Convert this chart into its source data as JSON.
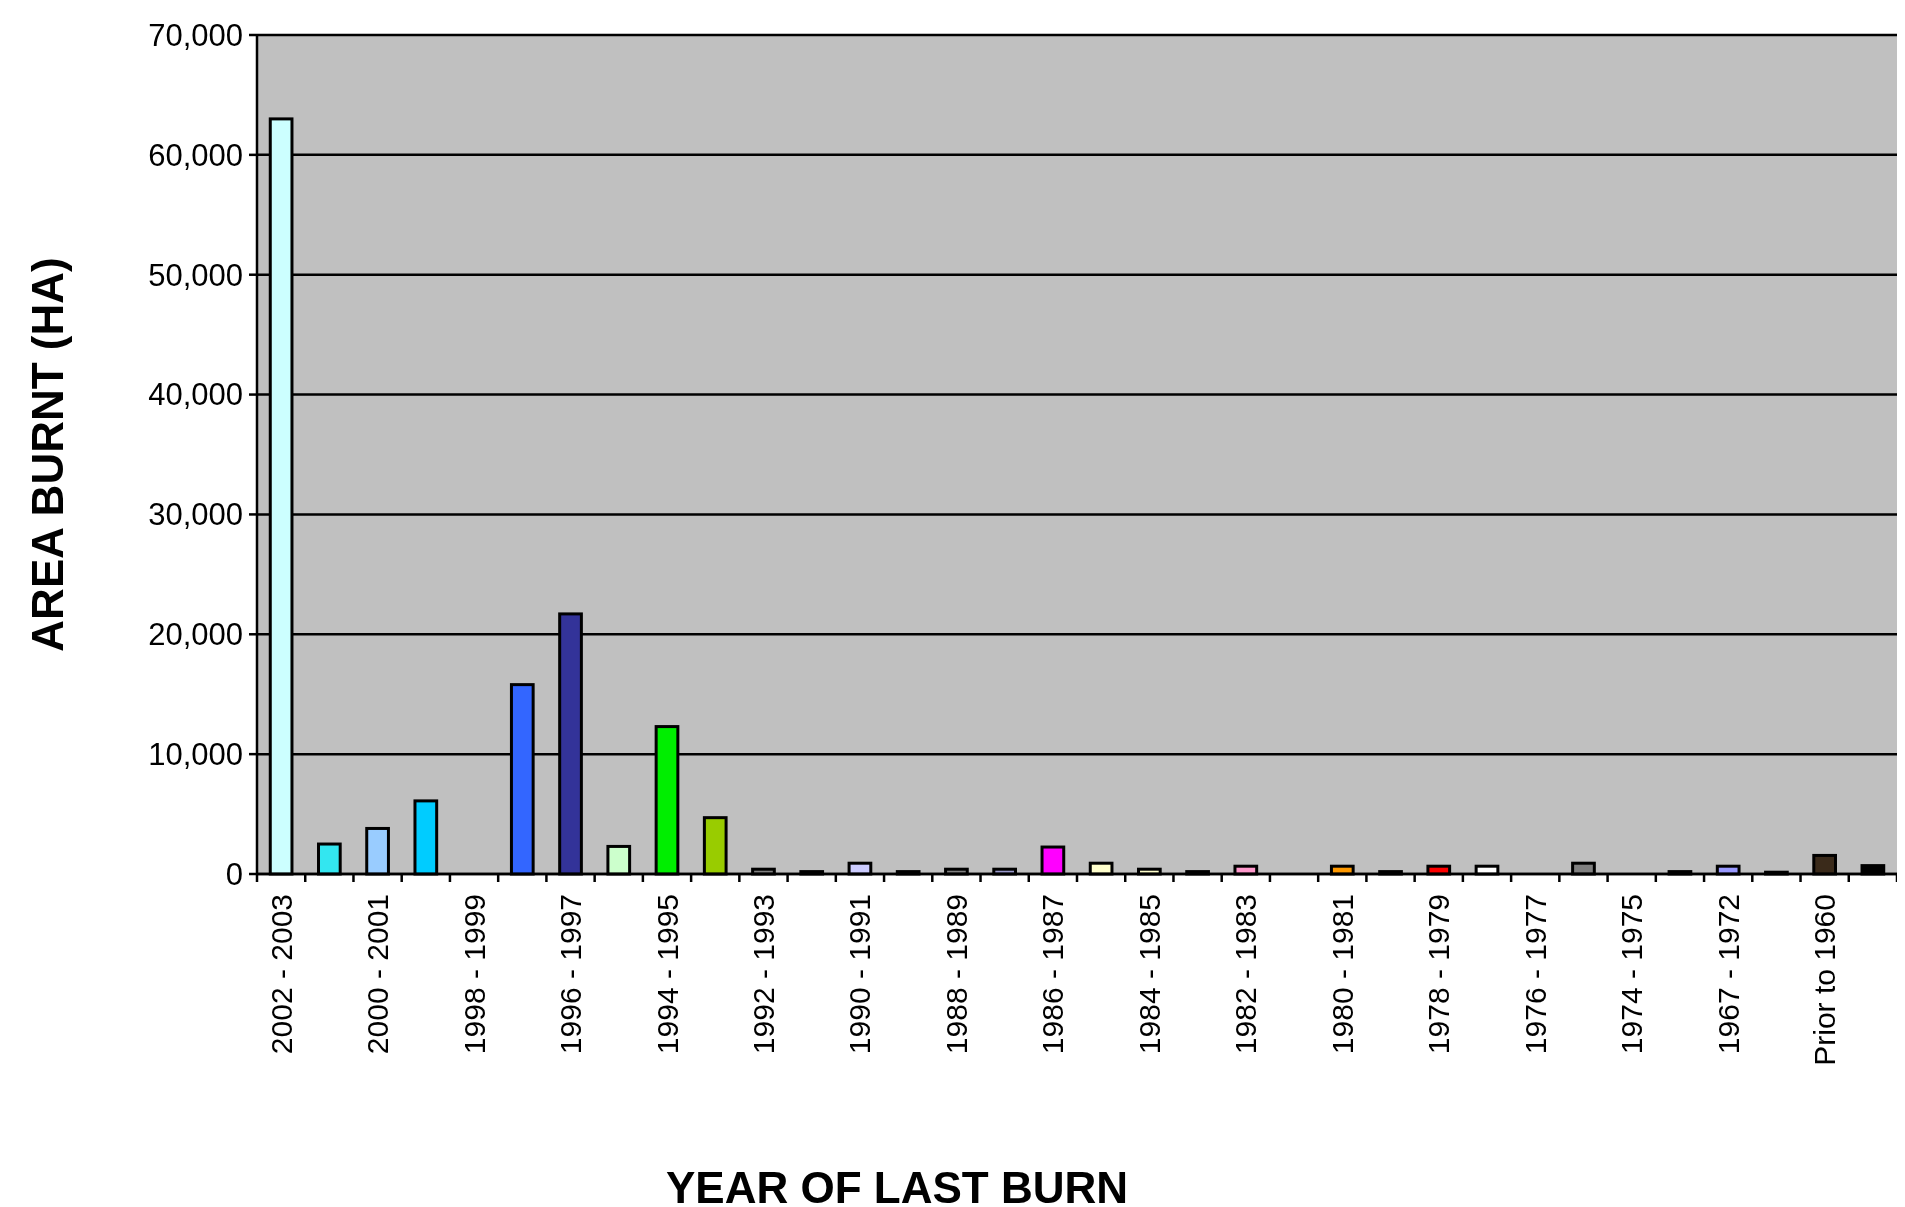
{
  "chart_data": {
    "type": "bar",
    "xlabel": "YEAR OF LAST BURN",
    "ylabel": "AREA BURNT (HA)",
    "categories": [
      "2002 - 2003",
      null,
      "2000 - 2001",
      null,
      "1998 - 1999",
      null,
      "1996 - 1997",
      null,
      "1994 - 1995",
      null,
      "1992 - 1993",
      null,
      "1990 - 1991",
      null,
      "1988 - 1989",
      null,
      "1986 - 1987",
      null,
      "1984 - 1985",
      null,
      "1982 - 1983",
      null,
      "1980 - 1981",
      null,
      "1978 - 1979",
      null,
      "1976 - 1977",
      null,
      "1974 - 1975",
      null,
      "1967 - 1972",
      null,
      "Prior to 1960",
      null
    ],
    "values": [
      63000,
      2500,
      3800,
      6100,
      0,
      15800,
      21700,
      2300,
      12300,
      4700,
      400,
      200,
      900,
      200,
      400,
      400,
      2250,
      900,
      400,
      200,
      650,
      0,
      650,
      200,
      650,
      650,
      0,
      900,
      0,
      200,
      650,
      150,
      1550,
      700
    ],
    "colors": [
      "#ccffff",
      "#33e6f0",
      "#99ccff",
      "#00ccff",
      "#c0c0c0",
      "#3366ff",
      "#333399",
      "#ccffcc",
      "#00ee00",
      "#99cc00",
      "#808080",
      "#000000",
      "#ccccff",
      "#000000",
      "#808080",
      "#9999cc",
      "#ff00ff",
      "#ffffcc",
      "#ffffcc",
      "#000000",
      "#ff99cc",
      "#c0c0c0",
      "#ff9900",
      "#000000",
      "#ff0000",
      "#ffffff",
      "#c0c0c0",
      "#808080",
      "#c0c0c0",
      "#000000",
      "#9999ff",
      "#000000",
      "#3a2a1a",
      "#000000"
    ],
    "ylim": [
      0,
      70000
    ],
    "yticks": [
      {
        "value": 0,
        "label": "0"
      },
      {
        "value": 10000,
        "label": "10,000"
      },
      {
        "value": 20000,
        "label": "20,000"
      },
      {
        "value": 30000,
        "label": "30,000"
      },
      {
        "value": 40000,
        "label": "40,000"
      },
      {
        "value": 50000,
        "label": "50,000"
      },
      {
        "value": 60000,
        "label": "60,000"
      },
      {
        "value": 70000,
        "label": "70,000"
      }
    ],
    "grid": "y"
  }
}
